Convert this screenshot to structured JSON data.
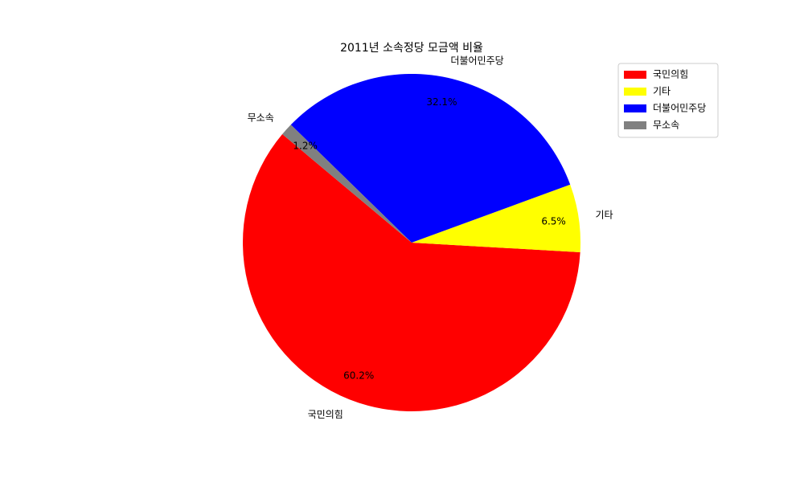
{
  "chart_data": {
    "type": "pie",
    "title": "2011년 소속정당 모금액 비율",
    "slices": [
      {
        "label": "국민의힘",
        "value": 60.2,
        "pct_label": "60.2%",
        "color": "#ff0000"
      },
      {
        "label": "기타",
        "value": 6.5,
        "pct_label": "6.5%",
        "color": "#ffff00"
      },
      {
        "label": "더불어민주당",
        "value": 32.1,
        "pct_label": "32.1%",
        "color": "#0000ff"
      },
      {
        "label": "무소속",
        "value": 1.2,
        "pct_label": "1.2%",
        "color": "#808080"
      }
    ],
    "start_angle_deg": 140,
    "direction": "counterclockwise",
    "legend": {
      "position": "top-right",
      "entries": [
        "국민의힘",
        "기타",
        "더불어민주당",
        "무소속"
      ]
    }
  }
}
